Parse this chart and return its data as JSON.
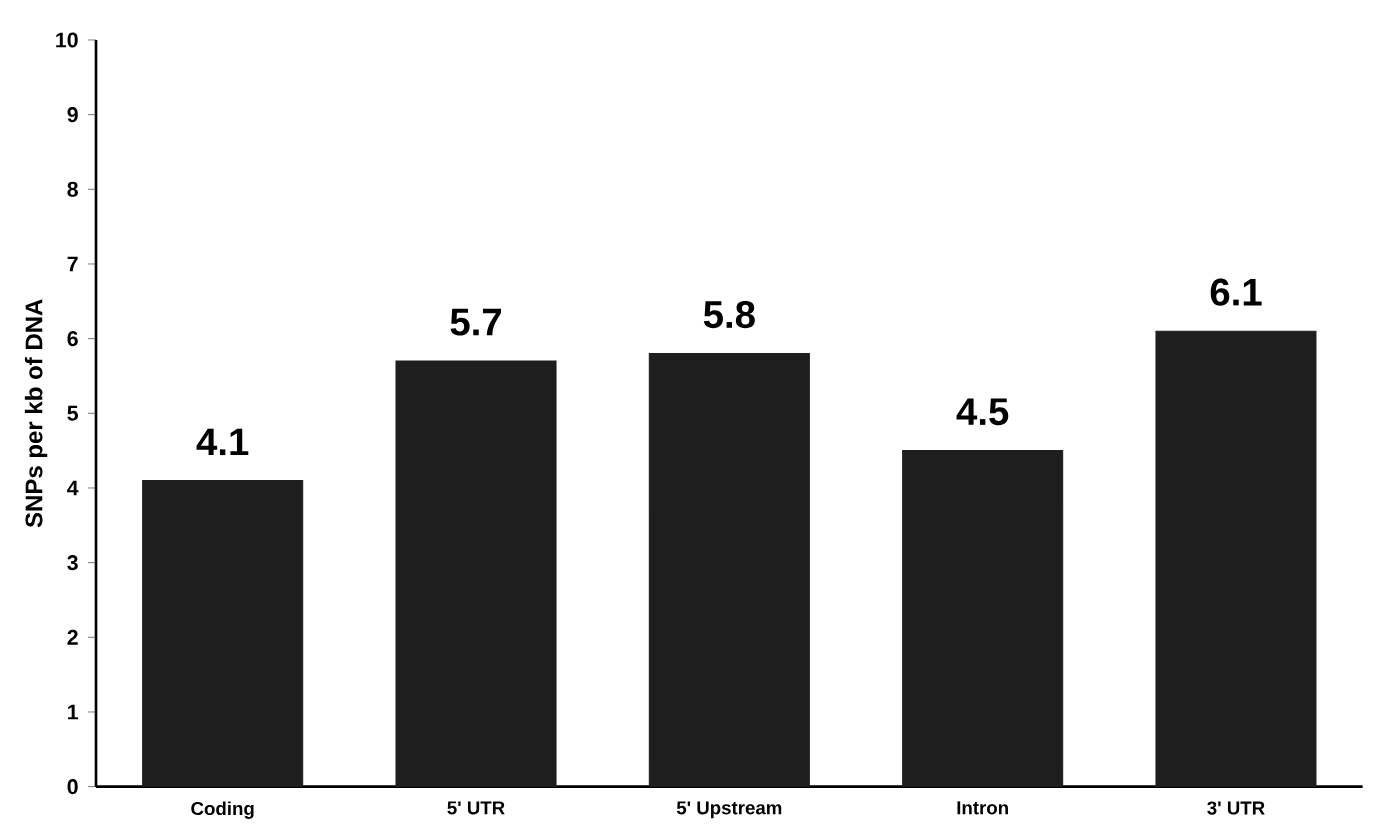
{
  "chart_data": {
    "type": "bar",
    "ylabel": "SNPs per kb of DNA",
    "categories": [
      "Coding",
      "5' UTR",
      "5' Upstream",
      "Intron",
      "3' UTR"
    ],
    "values": [
      4.1,
      5.7,
      5.8,
      4.5,
      6.1
    ],
    "color": "#1e1e1e",
    "ylim": [
      0,
      10
    ],
    "yticks": [
      0,
      1,
      2,
      3,
      4,
      5,
      6,
      7,
      8,
      9,
      10
    ],
    "data_labels": true,
    "grid": false
  }
}
